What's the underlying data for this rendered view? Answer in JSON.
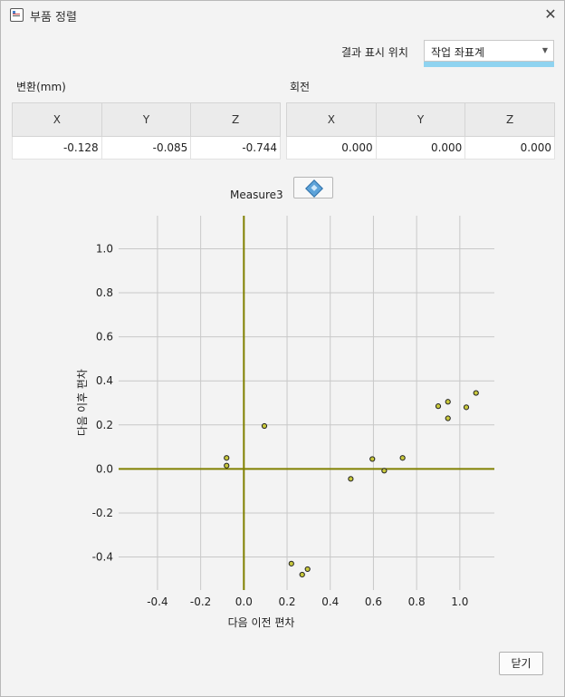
{
  "window": {
    "title": "부품 정렬",
    "close_icon": "close-icon"
  },
  "result_display": {
    "label": "결과 표시 위치",
    "selected": "작업 좌표계"
  },
  "translation": {
    "label": "변환(mm)",
    "columns": [
      "X",
      "Y",
      "Z"
    ],
    "values": [
      "-0.128",
      "-0.085",
      "-0.744"
    ]
  },
  "rotation": {
    "label": "회전",
    "columns": [
      "X",
      "Y",
      "Z"
    ],
    "values": [
      "0.000",
      "0.000",
      "0.000"
    ]
  },
  "measure": {
    "label": "Measure3",
    "button_icon": "cube-icon"
  },
  "chart_data": {
    "type": "scatter",
    "xlabel": "다음 이전 편차",
    "ylabel": "다음 이후 편차",
    "xlim": [
      -0.58,
      1.16
    ],
    "ylim": [
      -0.55,
      1.15
    ],
    "xticks": [
      "-0.4",
      "-0.2",
      "0.0",
      "0.2",
      "0.4",
      "0.6",
      "0.8",
      "1.0"
    ],
    "yticks": [
      "1.0",
      "0.8",
      "0.6",
      "0.4",
      "0.2",
      "0.0",
      "-0.2",
      "-0.4"
    ],
    "grid": true,
    "axis_line_color": "#808000",
    "point_color": "#c8c83c",
    "points": [
      {
        "x": -0.08,
        "y": 0.05
      },
      {
        "x": -0.08,
        "y": 0.015
      },
      {
        "x": 0.095,
        "y": 0.195
      },
      {
        "x": 0.22,
        "y": -0.43
      },
      {
        "x": 0.27,
        "y": -0.48
      },
      {
        "x": 0.295,
        "y": -0.455
      },
      {
        "x": 0.495,
        "y": -0.045
      },
      {
        "x": 0.595,
        "y": 0.045
      },
      {
        "x": 0.65,
        "y": -0.008
      },
      {
        "x": 0.735,
        "y": 0.05
      },
      {
        "x": 0.9,
        "y": 0.285
      },
      {
        "x": 0.945,
        "y": 0.305
      },
      {
        "x": 0.945,
        "y": 0.23
      },
      {
        "x": 1.03,
        "y": 0.28
      },
      {
        "x": 1.075,
        "y": 0.345
      }
    ]
  },
  "footer": {
    "close_label": "닫기"
  }
}
